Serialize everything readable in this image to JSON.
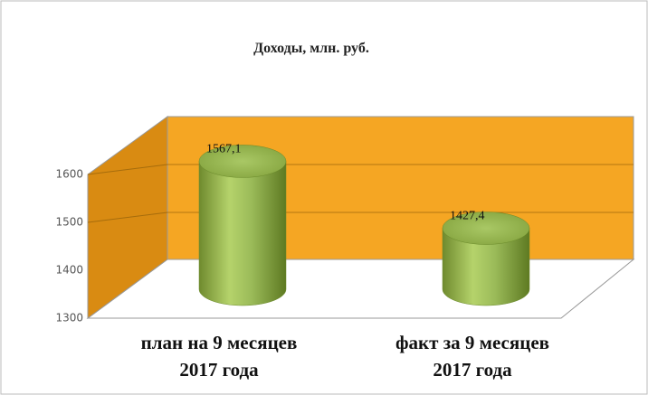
{
  "chart_data": {
    "type": "bar",
    "title": "Доходы, млн. руб.",
    "categories": [
      [
        "план на 9 месяцев",
        "2017 года"
      ],
      [
        "факт за 9 месяцев",
        "2017 года"
      ]
    ],
    "values": [
      1567.1,
      1427.4
    ],
    "value_labels": [
      "1567,1",
      "1427,4"
    ],
    "color": "#9bbb59",
    "wall_color": "#f5a623",
    "ylim": [
      1300,
      1700
    ],
    "yticks": [
      1300,
      1400,
      1500,
      1600
    ],
    "grid": true
  }
}
